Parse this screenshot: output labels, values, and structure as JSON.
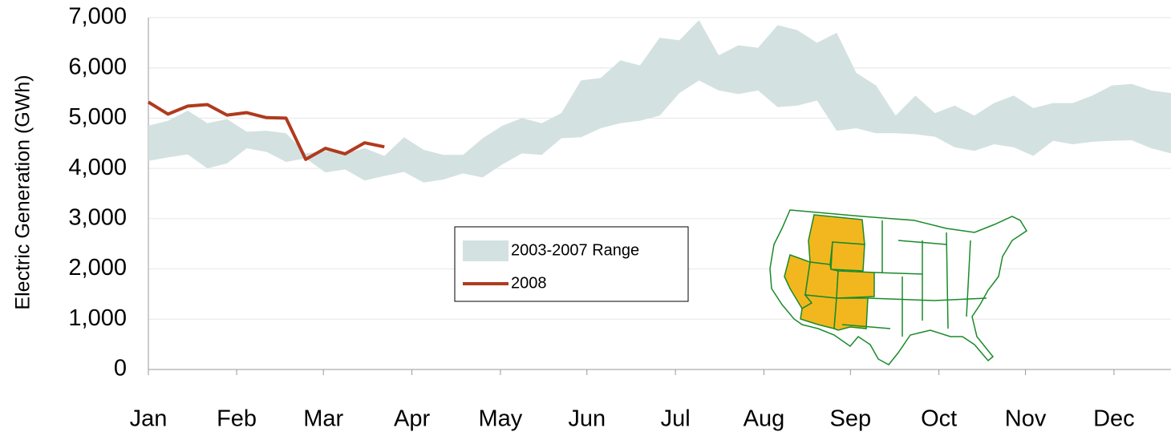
{
  "chart_data": {
    "type": "range-line",
    "y_label": "Electric Generation (GWh)",
    "x": [
      0,
      1,
      2,
      3,
      4,
      5,
      6,
      7,
      8,
      9,
      10,
      11,
      12,
      13,
      14,
      15,
      16,
      17,
      18,
      19,
      20,
      21,
      22,
      23,
      24,
      25,
      26,
      27,
      28,
      29,
      30,
      31,
      32,
      33,
      34,
      35,
      36,
      37,
      38,
      39,
      40,
      41,
      42,
      43,
      44,
      45,
      46,
      47,
      48,
      49,
      50,
      51,
      52
    ],
    "xlim": [
      0,
      52
    ],
    "xticks": [
      {
        "value": 0,
        "label": "Jan"
      },
      {
        "value": 4.49,
        "label": "Feb"
      },
      {
        "value": 8.9,
        "label": "Mar"
      },
      {
        "value": 13.4,
        "label": "Apr"
      },
      {
        "value": 17.9,
        "label": "May"
      },
      {
        "value": 22.3,
        "label": "Jun"
      },
      {
        "value": 26.8,
        "label": "Jul"
      },
      {
        "value": 31.3,
        "label": "Aug"
      },
      {
        "value": 35.7,
        "label": "Sep"
      },
      {
        "value": 40.2,
        "label": "Oct"
      },
      {
        "value": 44.6,
        "label": "Nov"
      },
      {
        "value": 49.1,
        "label": "Dec"
      }
    ],
    "ylim": [
      0,
      7000
    ],
    "yticks": [
      0,
      {
        "value": 1000,
        "label": "1,000"
      },
      {
        "value": 2000,
        "label": "2,000"
      },
      {
        "value": 3000,
        "label": "3,000"
      },
      {
        "value": 4000,
        "label": "4,000"
      },
      {
        "value": 5000,
        "label": "5,000"
      },
      {
        "value": 6000,
        "label": "6,000"
      },
      {
        "value": 7000,
        "label": "7,000"
      }
    ],
    "grid": true,
    "series": [
      {
        "name": "2003-2007 Range",
        "color": "#d3e1e1",
        "high": [
          4850,
          4950,
          5150,
          4900,
          4980,
          4730,
          4750,
          4700,
          4300,
          4350,
          4300,
          4400,
          4250,
          4620,
          4370,
          4270,
          4270,
          4600,
          4850,
          5000,
          4900,
          5100,
          5750,
          5800,
          6150,
          6050,
          6600,
          6550,
          6950,
          6250,
          6450,
          6400,
          6850,
          6750,
          6500,
          6700,
          5900,
          5650,
          5050,
          5450,
          5100,
          5250,
          5050,
          5300,
          5450,
          5200,
          5300,
          5300,
          5450,
          5650,
          5680,
          5550,
          5500
        ],
        "low": [
          4150,
          4220,
          4280,
          4000,
          4100,
          4400,
          4330,
          4130,
          4200,
          3920,
          3980,
          3760,
          3850,
          3930,
          3720,
          3780,
          3900,
          3820,
          4080,
          4300,
          4270,
          4600,
          4620,
          4800,
          4900,
          4950,
          5050,
          5500,
          5750,
          5550,
          5480,
          5550,
          5220,
          5250,
          5350,
          4750,
          4800,
          4700,
          4700,
          4680,
          4630,
          4420,
          4350,
          4480,
          4420,
          4250,
          4550,
          4480,
          4530,
          4550,
          4560,
          4400,
          4300
        ]
      },
      {
        "name": "2008",
        "color": "#b03a1e",
        "values": [
          5320,
          5080,
          5240,
          5270,
          5060,
          5110,
          5010,
          5000,
          4180,
          4400,
          4290,
          4510,
          4430,
          null,
          null,
          null,
          null,
          null,
          null,
          null,
          null,
          null,
          null,
          null,
          null,
          null,
          null,
          null,
          null,
          null,
          null,
          null,
          null,
          null,
          null,
          null,
          null,
          null,
          null,
          null,
          null,
          null,
          null,
          null,
          null,
          null,
          null,
          null,
          null,
          null,
          null,
          null,
          null
        ]
      }
    ]
  }
}
